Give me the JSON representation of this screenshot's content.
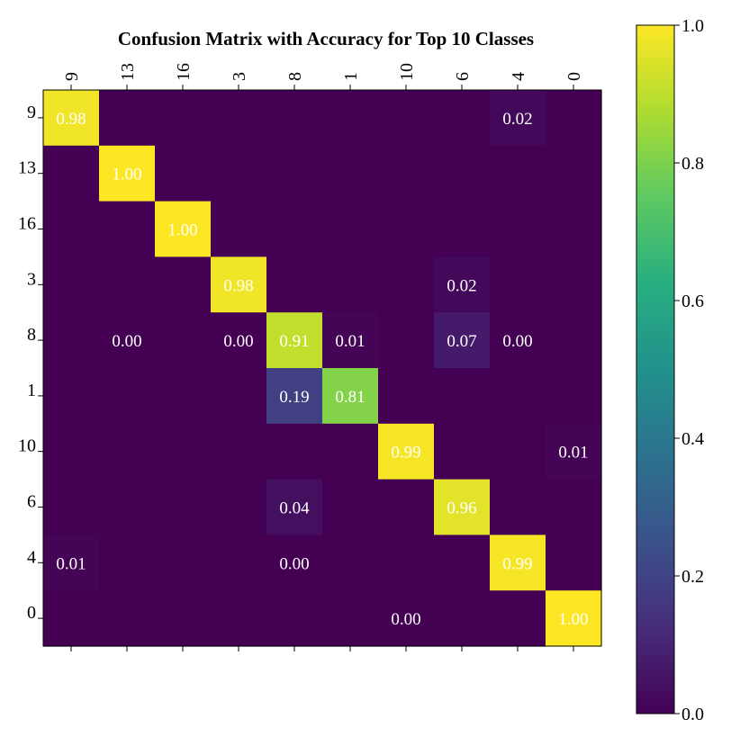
{
  "chart_data": {
    "type": "heatmap",
    "title": "Confusion Matrix with Accuracy for Top 10 Classes",
    "x_categories": [
      "9",
      "13",
      "16",
      "3",
      "8",
      "1",
      "10",
      "6",
      "4",
      "0"
    ],
    "y_categories": [
      "9",
      "13",
      "16",
      "3",
      "8",
      "1",
      "10",
      "6",
      "4",
      "0"
    ],
    "values": [
      [
        0.98,
        0,
        0,
        0,
        0,
        0,
        0,
        0,
        0.02,
        0
      ],
      [
        0,
        1.0,
        0,
        0,
        0,
        0,
        0,
        0,
        0,
        0
      ],
      [
        0,
        0,
        1.0,
        0,
        0,
        0,
        0,
        0,
        0,
        0
      ],
      [
        0,
        0,
        0,
        0.98,
        0,
        0,
        0,
        0.02,
        0,
        0
      ],
      [
        0,
        0.001,
        0,
        0.001,
        0.91,
        0.01,
        0,
        0.07,
        0.001,
        0
      ],
      [
        0,
        0,
        0,
        0,
        0.19,
        0.81,
        0,
        0,
        0,
        0
      ],
      [
        0,
        0,
        0,
        0,
        0,
        0,
        0.99,
        0,
        0,
        0.01
      ],
      [
        0,
        0,
        0,
        0,
        0.04,
        0,
        0,
        0.96,
        0,
        0
      ],
      [
        0.01,
        0,
        0,
        0,
        0.001,
        0,
        0,
        0,
        0.99,
        0
      ],
      [
        0,
        0,
        0,
        0,
        0,
        0,
        0.001,
        0,
        0,
        1.0
      ]
    ],
    "labels": [
      [
        "0.98",
        "",
        "",
        "",
        "",
        "",
        "",
        "",
        "0.02",
        ""
      ],
      [
        "",
        "1.00",
        "",
        "",
        "",
        "",
        "",
        "",
        "",
        ""
      ],
      [
        "",
        "",
        "1.00",
        "",
        "",
        "",
        "",
        "",
        "",
        ""
      ],
      [
        "",
        "",
        "",
        "0.98",
        "",
        "",
        "",
        "0.02",
        "",
        ""
      ],
      [
        "",
        "0.00",
        "",
        "0.00",
        "0.91",
        "0.01",
        "",
        "0.07",
        "0.00",
        ""
      ],
      [
        "",
        "",
        "",
        "",
        "0.19",
        "0.81",
        "",
        "",
        "",
        ""
      ],
      [
        "",
        "",
        "",
        "",
        "",
        "",
        "0.99",
        "",
        "",
        "0.01"
      ],
      [
        "",
        "",
        "",
        "",
        "0.04",
        "",
        "",
        "0.96",
        "",
        ""
      ],
      [
        "0.01",
        "",
        "",
        "",
        "0.00",
        "",
        "",
        "",
        "0.99",
        ""
      ],
      [
        "",
        "",
        "",
        "",
        "",
        "",
        "0.00",
        "",
        "",
        "1.00"
      ]
    ],
    "colormap": "viridis",
    "vmin": 0.0,
    "vmax": 1.0,
    "colorbar_ticks": [
      "0.0",
      "0.2",
      "0.4",
      "0.6",
      "0.8",
      "1.0"
    ],
    "x_tick_position": "top",
    "x_tick_rotation": "vertical",
    "grid": false
  }
}
